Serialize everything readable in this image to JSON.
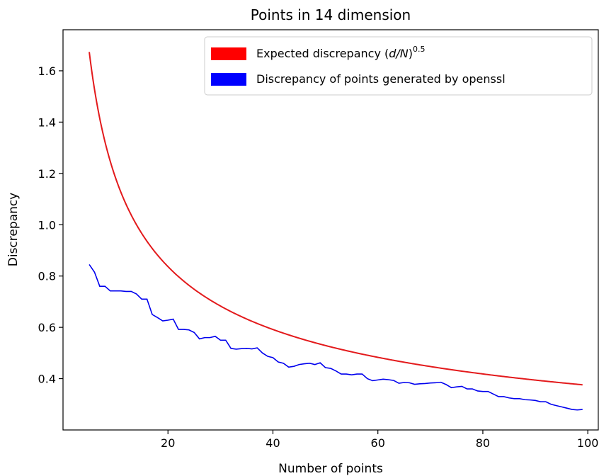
{
  "chart_data": {
    "type": "line",
    "title": "Points in 14 dimension",
    "xlabel": "Number of points",
    "ylabel": "Discrepancy",
    "xlim": [
      0,
      102
    ],
    "ylim": [
      0.2,
      1.76
    ],
    "xticks": [
      20,
      40,
      60,
      80,
      100
    ],
    "yticks": [
      0.4,
      0.6,
      0.8,
      1.0,
      1.2,
      1.4,
      1.6
    ],
    "grid": false,
    "legend_placement": "top-right",
    "series": [
      {
        "name": "Expected discrepancy (d/N)^0.5",
        "legend_text": "Expected discrepancy ",
        "legend_math": "d/N",
        "legend_exp": "0.5",
        "color": "#e31a1c",
        "formula": "sqrt(14/N)",
        "x_start": 5,
        "x_end": 99
      },
      {
        "name": "Discrepancy of points generated by openssl",
        "color": "#0000ee",
        "x": [
          5,
          6,
          7,
          8,
          9,
          10,
          11,
          12,
          13,
          14,
          15,
          16,
          17,
          18,
          19,
          20,
          21,
          22,
          23,
          24,
          25,
          26,
          27,
          28,
          29,
          30,
          31,
          32,
          33,
          34,
          35,
          36,
          37,
          38,
          39,
          40,
          41,
          42,
          43,
          44,
          45,
          46,
          47,
          48,
          49,
          50,
          51,
          52,
          53,
          54,
          55,
          56,
          57,
          58,
          59,
          60,
          61,
          62,
          63,
          64,
          65,
          66,
          67,
          68,
          69,
          70,
          71,
          72,
          73,
          74,
          75,
          76,
          77,
          78,
          79,
          80,
          81,
          82,
          83,
          84,
          85,
          86,
          87,
          88,
          89,
          90,
          91,
          92,
          93,
          94,
          95,
          96,
          97,
          98,
          99
        ],
        "y": [
          0.845,
          0.815,
          0.76,
          0.76,
          0.742,
          0.742,
          0.742,
          0.74,
          0.74,
          0.73,
          0.71,
          0.71,
          0.65,
          0.638,
          0.625,
          0.628,
          0.632,
          0.592,
          0.592,
          0.59,
          0.58,
          0.555,
          0.56,
          0.56,
          0.565,
          0.55,
          0.55,
          0.518,
          0.515,
          0.517,
          0.518,
          0.516,
          0.52,
          0.5,
          0.487,
          0.482,
          0.465,
          0.46,
          0.445,
          0.448,
          0.455,
          0.458,
          0.46,
          0.455,
          0.462,
          0.443,
          0.44,
          0.43,
          0.418,
          0.418,
          0.415,
          0.418,
          0.418,
          0.4,
          0.392,
          0.395,
          0.398,
          0.396,
          0.393,
          0.382,
          0.385,
          0.384,
          0.378,
          0.38,
          0.381,
          0.383,
          0.384,
          0.386,
          0.377,
          0.365,
          0.368,
          0.37,
          0.36,
          0.36,
          0.352,
          0.35,
          0.35,
          0.34,
          0.33,
          0.33,
          0.325,
          0.322,
          0.322,
          0.318,
          0.317,
          0.315,
          0.31,
          0.31,
          0.3,
          0.295,
          0.29,
          0.285,
          0.28,
          0.278,
          0.28
        ]
      }
    ]
  }
}
